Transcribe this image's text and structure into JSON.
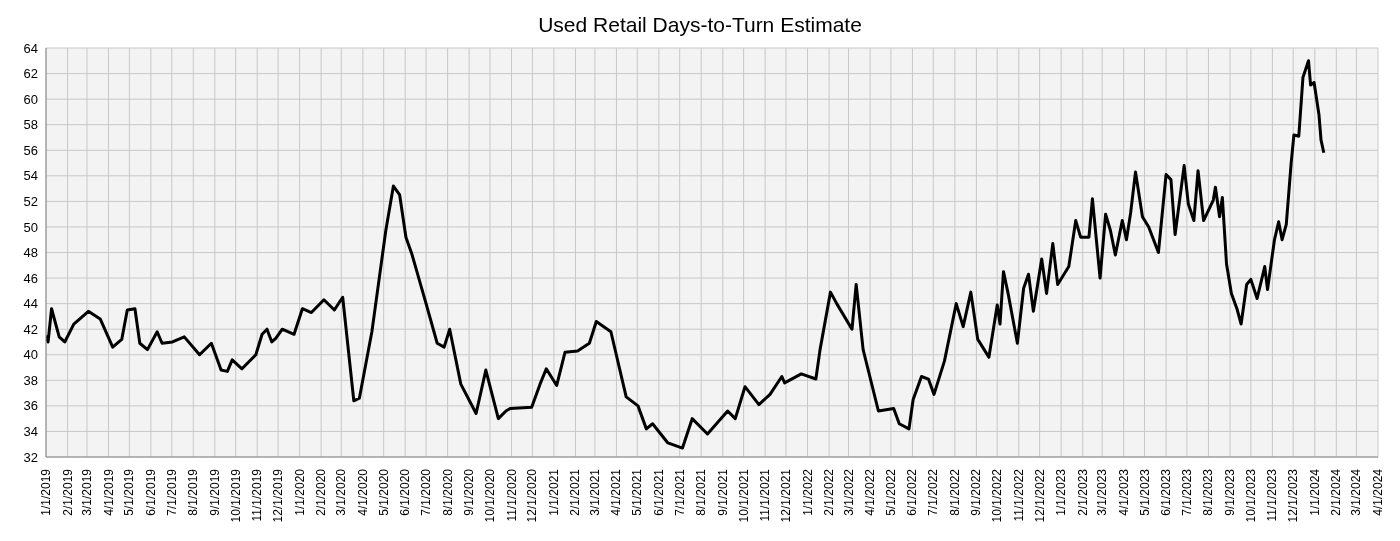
{
  "chart_data": {
    "type": "line",
    "title": "Used Retail Days-to-Turn Estimate",
    "x": [
      "2019-01-01",
      "2019-01-04",
      "2019-01-09",
      "2019-01-20",
      "2019-01-28",
      "2019-02-10",
      "2019-03-03",
      "2019-03-20",
      "2019-04-07",
      "2019-04-20",
      "2019-04-28",
      "2019-05-09",
      "2019-05-16",
      "2019-05-27",
      "2019-06-10",
      "2019-06-17",
      "2019-07-02",
      "2019-07-19",
      "2019-08-10",
      "2019-08-27",
      "2019-09-10",
      "2019-09-19",
      "2019-09-26",
      "2019-10-10",
      "2019-10-30",
      "2019-11-08",
      "2019-11-15",
      "2019-11-22",
      "2019-11-28",
      "2019-12-07",
      "2019-12-24",
      "2020-01-05",
      "2020-01-18",
      "2020-02-05",
      "2020-02-20",
      "2020-03-03",
      "2020-03-19",
      "2020-03-27",
      "2020-04-14",
      "2020-05-04",
      "2020-05-15",
      "2020-05-24",
      "2020-06-02",
      "2020-06-11",
      "2020-07-01",
      "2020-07-17",
      "2020-07-27",
      "2020-08-04",
      "2020-08-20",
      "2020-09-11",
      "2020-09-25",
      "2020-10-13",
      "2020-10-24",
      "2020-10-30",
      "2020-11-30",
      "2020-12-12",
      "2020-12-21",
      "2021-01-05",
      "2021-01-17",
      "2021-02-04",
      "2021-02-21",
      "2021-03-03",
      "2021-03-24",
      "2021-04-15",
      "2021-05-02",
      "2021-05-14",
      "2021-05-23",
      "2021-06-14",
      "2021-07-05",
      "2021-07-19",
      "2021-08-10",
      "2021-09-08",
      "2021-09-19",
      "2021-10-03",
      "2021-10-23",
      "2021-11-08",
      "2021-11-25",
      "2021-11-29",
      "2021-12-23",
      "2022-01-13",
      "2022-01-19",
      "2022-02-03",
      "2022-02-12",
      "2022-03-06",
      "2022-03-12",
      "2022-03-22",
      "2022-04-13",
      "2022-05-05",
      "2022-05-13",
      "2022-05-27",
      "2022-06-02",
      "2022-06-14",
      "2022-06-24",
      "2022-07-02",
      "2022-07-17",
      "2022-08-03",
      "2022-08-13",
      "2022-08-24",
      "2022-09-03",
      "2022-09-10",
      "2022-09-19",
      "2022-10-01",
      "2022-10-05",
      "2022-10-10",
      "2022-10-17",
      "2022-10-30",
      "2022-11-08",
      "2022-11-15",
      "2022-11-22",
      "2022-12-04",
      "2022-12-11",
      "2022-12-20",
      "2022-12-27",
      "2023-01-12",
      "2023-01-22",
      "2023-01-29",
      "2023-02-10",
      "2023-02-15",
      "2023-02-26",
      "2023-03-06",
      "2023-03-13",
      "2023-03-20",
      "2023-03-30",
      "2023-04-05",
      "2023-04-11",
      "2023-04-18",
      "2023-04-28",
      "2023-05-07",
      "2023-05-21",
      "2023-06-01",
      "2023-06-08",
      "2023-06-14",
      "2023-06-27",
      "2023-07-03",
      "2023-07-11",
      "2023-07-17",
      "2023-07-25",
      "2023-08-08",
      "2023-08-11",
      "2023-08-17",
      "2023-08-21",
      "2023-08-27",
      "2023-09-03",
      "2023-09-11",
      "2023-09-17",
      "2023-09-25",
      "2023-10-01",
      "2023-10-10",
      "2023-10-21",
      "2023-10-25",
      "2023-11-04",
      "2023-11-10",
      "2023-11-15",
      "2023-11-21",
      "2023-11-28",
      "2023-12-02",
      "2023-12-09",
      "2023-12-15",
      "2023-12-23",
      "2023-12-26",
      "2023-12-31",
      "2024-01-07",
      "2024-01-10",
      "2024-01-14"
    ],
    "series": [
      {
        "color": "#000000",
        "values": [
          41.5,
          41.0,
          43.6,
          41.4,
          41.0,
          42.4,
          43.4,
          42.8,
          40.6,
          41.2,
          43.5,
          43.6,
          40.9,
          40.4,
          41.8,
          40.9,
          41.0,
          41.4,
          40.0,
          40.9,
          38.8,
          38.7,
          39.6,
          38.9,
          40.0,
          41.6,
          42.0,
          41.0,
          41.3,
          42.0,
          41.6,
          43.6,
          43.3,
          44.3,
          43.5,
          44.5,
          36.4,
          36.6,
          41.8,
          49.7,
          53.2,
          52.5,
          49.2,
          47.8,
          44.0,
          40.9,
          40.6,
          42.0,
          37.7,
          35.4,
          38.8,
          35.0,
          35.6,
          35.8,
          35.9,
          37.7,
          38.9,
          37.6,
          40.2,
          40.3,
          40.9,
          42.6,
          41.8,
          36.7,
          36.0,
          34.2,
          34.6,
          33.1,
          32.7,
          35.0,
          33.8,
          35.6,
          35.0,
          37.5,
          36.1,
          36.9,
          38.3,
          37.8,
          38.5,
          38.1,
          40.4,
          44.9,
          44.0,
          42.0,
          45.5,
          40.4,
          35.6,
          35.8,
          34.6,
          34.2,
          36.5,
          38.3,
          38.1,
          36.9,
          39.5,
          44.0,
          42.2,
          44.9,
          41.2,
          40.6,
          39.8,
          43.9,
          42.4,
          46.5,
          44.7,
          40.9,
          45.2,
          46.3,
          43.4,
          47.5,
          44.8,
          48.7,
          45.5,
          46.9,
          50.5,
          49.2,
          49.2,
          52.2,
          46.0,
          51.0,
          49.7,
          47.8,
          50.5,
          49.0,
          51.1,
          54.3,
          50.8,
          50.0,
          48.0,
          54.1,
          53.7,
          49.4,
          54.8,
          51.8,
          50.5,
          54.4,
          50.5,
          52.1,
          53.1,
          50.8,
          52.3,
          47.1,
          44.8,
          43.6,
          42.4,
          45.5,
          45.9,
          44.4,
          46.9,
          45.1,
          49.0,
          50.4,
          49.0,
          50.2,
          55.0,
          57.2,
          57.1,
          61.7,
          63.0,
          61.1,
          61.3,
          58.8,
          56.8,
          55.8
        ]
      }
    ],
    "xlim": [
      "2019-01-01",
      "2024-04-01"
    ],
    "xticks": [
      {
        "value": "2019-01-01",
        "label": "1/1/2019"
      },
      {
        "value": "2019-02-01",
        "label": "2/1/2019"
      },
      {
        "value": "2019-03-01",
        "label": "3/1/2019"
      },
      {
        "value": "2019-04-01",
        "label": "4/1/2019"
      },
      {
        "value": "2019-05-01",
        "label": "5/1/2019"
      },
      {
        "value": "2019-06-01",
        "label": "6/1/2019"
      },
      {
        "value": "2019-07-01",
        "label": "7/1/2019"
      },
      {
        "value": "2019-08-01",
        "label": "8/1/2019"
      },
      {
        "value": "2019-09-01",
        "label": "9/1/2019"
      },
      {
        "value": "2019-10-01",
        "label": "10/1/2019"
      },
      {
        "value": "2019-11-01",
        "label": "11/1/2019"
      },
      {
        "value": "2019-12-01",
        "label": "12/1/2019"
      },
      {
        "value": "2020-01-01",
        "label": "1/1/2020"
      },
      {
        "value": "2020-02-01",
        "label": "2/1/2020"
      },
      {
        "value": "2020-03-01",
        "label": "3/1/2020"
      },
      {
        "value": "2020-04-01",
        "label": "4/1/2020"
      },
      {
        "value": "2020-05-01",
        "label": "5/1/2020"
      },
      {
        "value": "2020-06-01",
        "label": "6/1/2020"
      },
      {
        "value": "2020-07-01",
        "label": "7/1/2020"
      },
      {
        "value": "2020-08-01",
        "label": "8/1/2020"
      },
      {
        "value": "2020-09-01",
        "label": "9/1/2020"
      },
      {
        "value": "2020-10-01",
        "label": "10/1/2020"
      },
      {
        "value": "2020-11-01",
        "label": "11/1/2020"
      },
      {
        "value": "2020-12-01",
        "label": "12/1/2020"
      },
      {
        "value": "2021-01-01",
        "label": "1/1/2021"
      },
      {
        "value": "2021-02-01",
        "label": "2/1/2021"
      },
      {
        "value": "2021-03-01",
        "label": "3/1/2021"
      },
      {
        "value": "2021-04-01",
        "label": "4/1/2021"
      },
      {
        "value": "2021-05-01",
        "label": "5/1/2021"
      },
      {
        "value": "2021-06-01",
        "label": "6/1/2021"
      },
      {
        "value": "2021-07-01",
        "label": "7/1/2021"
      },
      {
        "value": "2021-08-01",
        "label": "8/1/2021"
      },
      {
        "value": "2021-09-01",
        "label": "9/1/2021"
      },
      {
        "value": "2021-10-01",
        "label": "10/1/2021"
      },
      {
        "value": "2021-11-01",
        "label": "11/1/2021"
      },
      {
        "value": "2021-12-01",
        "label": "12/1/2021"
      },
      {
        "value": "2022-01-01",
        "label": "1/1/2022"
      },
      {
        "value": "2022-02-01",
        "label": "2/1/2022"
      },
      {
        "value": "2022-03-01",
        "label": "3/1/2022"
      },
      {
        "value": "2022-04-01",
        "label": "4/1/2022"
      },
      {
        "value": "2022-05-01",
        "label": "5/1/2022"
      },
      {
        "value": "2022-06-01",
        "label": "6/1/2022"
      },
      {
        "value": "2022-07-01",
        "label": "7/1/2022"
      },
      {
        "value": "2022-08-01",
        "label": "8/1/2022"
      },
      {
        "value": "2022-09-01",
        "label": "9/1/2022"
      },
      {
        "value": "2022-10-01",
        "label": "10/1/2022"
      },
      {
        "value": "2022-11-01",
        "label": "11/1/2022"
      },
      {
        "value": "2022-12-01",
        "label": "12/1/2022"
      },
      {
        "value": "2023-01-01",
        "label": "1/1/2023"
      },
      {
        "value": "2023-02-01",
        "label": "2/1/2023"
      },
      {
        "value": "2023-03-01",
        "label": "3/1/2023"
      },
      {
        "value": "2023-04-01",
        "label": "4/1/2023"
      },
      {
        "value": "2023-05-01",
        "label": "5/1/2023"
      },
      {
        "value": "2023-06-01",
        "label": "6/1/2023"
      },
      {
        "value": "2023-07-01",
        "label": "7/1/2023"
      },
      {
        "value": "2023-08-01",
        "label": "8/1/2023"
      },
      {
        "value": "2023-09-01",
        "label": "9/1/2023"
      },
      {
        "value": "2023-10-01",
        "label": "10/1/2023"
      },
      {
        "value": "2023-11-01",
        "label": "11/1/2023"
      },
      {
        "value": "2023-12-01",
        "label": "12/1/2023"
      },
      {
        "value": "2024-01-01",
        "label": "1/1/2024"
      },
      {
        "value": "2024-02-01",
        "label": "2/1/2024"
      },
      {
        "value": "2024-03-01",
        "label": "3/1/2024"
      },
      {
        "value": "2024-04-01",
        "label": "4/1/2024"
      }
    ],
    "ylim": [
      32,
      64
    ],
    "yticks": [
      32,
      34,
      36,
      38,
      40,
      42,
      44,
      46,
      48,
      50,
      52,
      54,
      56,
      58,
      60,
      62,
      64
    ],
    "grid": true,
    "marker": "none",
    "line_style": "solid",
    "legend": false
  }
}
